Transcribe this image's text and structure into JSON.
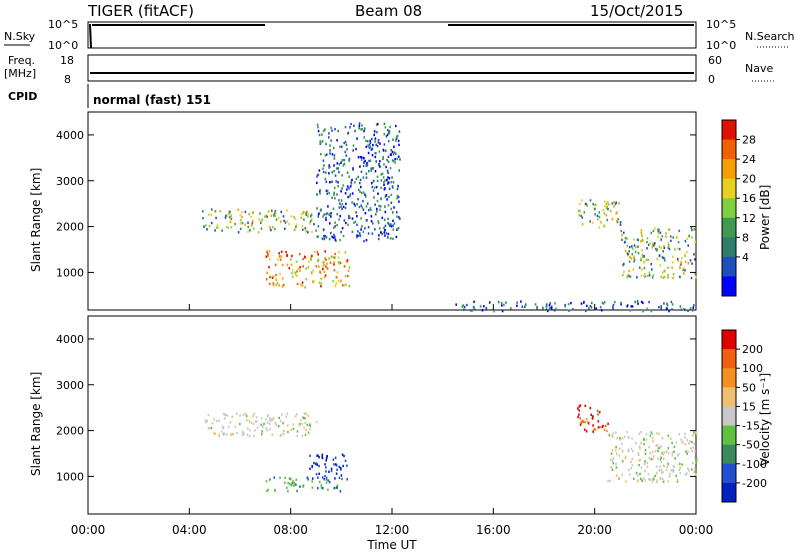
{
  "header": {
    "radar": "TIGER (fitACF)",
    "beam": "Beam 08",
    "date": "15/Oct/2015"
  },
  "nsky_panel": {
    "left_label": "N.Sky",
    "right_label": "N.Search",
    "left_ticks": [
      "10^5",
      "10^0"
    ],
    "right_ticks": [
      "10^5",
      "10^0"
    ]
  },
  "freq_panel": {
    "left_label_1": "Freq.",
    "left_label_2": "[MHz]",
    "right_label": "Nave",
    "left_ticks": [
      "18",
      "8"
    ],
    "right_ticks": [
      "60",
      "0"
    ]
  },
  "cpid": {
    "label": "CPID",
    "value": "normal (fast) 151"
  },
  "x_axis": {
    "title": "Time UT",
    "ticks": [
      "00:00",
      "04:00",
      "08:00",
      "12:00",
      "16:00",
      "20:00",
      "00:00"
    ]
  },
  "chart_data": [
    {
      "type": "heatmap",
      "panel": "power",
      "xlabel": "Time UT",
      "ylabel": "Slant Range [km]",
      "xlim_hours": [
        0,
        24
      ],
      "ylim_km": [
        180,
        4500
      ],
      "y_ticks": [
        1000,
        2000,
        3000,
        4000
      ],
      "colorbar": {
        "label": "Power [dB]",
        "ticks": [
          "28",
          "24",
          "20",
          "16",
          "12",
          "8",
          "4"
        ],
        "colors": [
          "#0000ff",
          "#1f4fbf",
          "#2e7d6b",
          "#3f9a50",
          "#7fd040",
          "#e8d020",
          "#f5a000",
          "#f06000",
          "#e01000"
        ]
      },
      "echo_regions": [
        {
          "t_start": 4.5,
          "t_end": 9.0,
          "r_min": 1900,
          "r_max": 2400,
          "level": "mixed"
        },
        {
          "t_start": 7.0,
          "t_end": 10.3,
          "r_min": 700,
          "r_max": 1500,
          "level": "high"
        },
        {
          "t_start": 9.0,
          "t_end": 12.3,
          "r_min": 1700,
          "r_max": 4300,
          "level": "low"
        },
        {
          "t_start": 19.3,
          "t_end": 21.0,
          "r_min": 2000,
          "r_max": 2600,
          "level": "mixed"
        },
        {
          "t_start": 21.0,
          "t_end": 24.0,
          "r_min": 900,
          "r_max": 2000,
          "level": "mixed"
        },
        {
          "t_start": 14.5,
          "t_end": 24.0,
          "r_min": 180,
          "r_max": 400,
          "level": "low"
        }
      ]
    },
    {
      "type": "heatmap",
      "panel": "velocity",
      "xlabel": "Time UT",
      "ylabel": "Slant Range [km]",
      "xlim_hours": [
        0,
        24
      ],
      "ylim_km": [
        180,
        4500
      ],
      "y_ticks": [
        1000,
        2000,
        3000,
        4000
      ],
      "colorbar": {
        "label": "Velocity [m s⁻¹]",
        "ticks": [
          "200",
          "100",
          "50",
          "15",
          "-15",
          "-50",
          "-100",
          "-200"
        ],
        "colors": [
          "#0020c0",
          "#2050d0",
          "#3a8a60",
          "#60c040",
          "#c8c8c8",
          "#f0c070",
          "#f59020",
          "#f06010",
          "#e00000"
        ]
      },
      "echo_regions": [
        {
          "t_start": 4.5,
          "t_end": 9.0,
          "r_min": 1900,
          "r_max": 2400,
          "level": "grey"
        },
        {
          "t_start": 8.7,
          "t_end": 10.3,
          "r_min": 900,
          "r_max": 1500,
          "level": "blue"
        },
        {
          "t_start": 7.0,
          "t_end": 10.0,
          "r_min": 700,
          "r_max": 1000,
          "level": "green"
        },
        {
          "t_start": 19.3,
          "t_end": 20.5,
          "r_min": 2000,
          "r_max": 2600,
          "level": "red"
        },
        {
          "t_start": 20.5,
          "t_end": 24.0,
          "r_min": 900,
          "r_max": 2000,
          "level": "grey"
        }
      ]
    }
  ]
}
